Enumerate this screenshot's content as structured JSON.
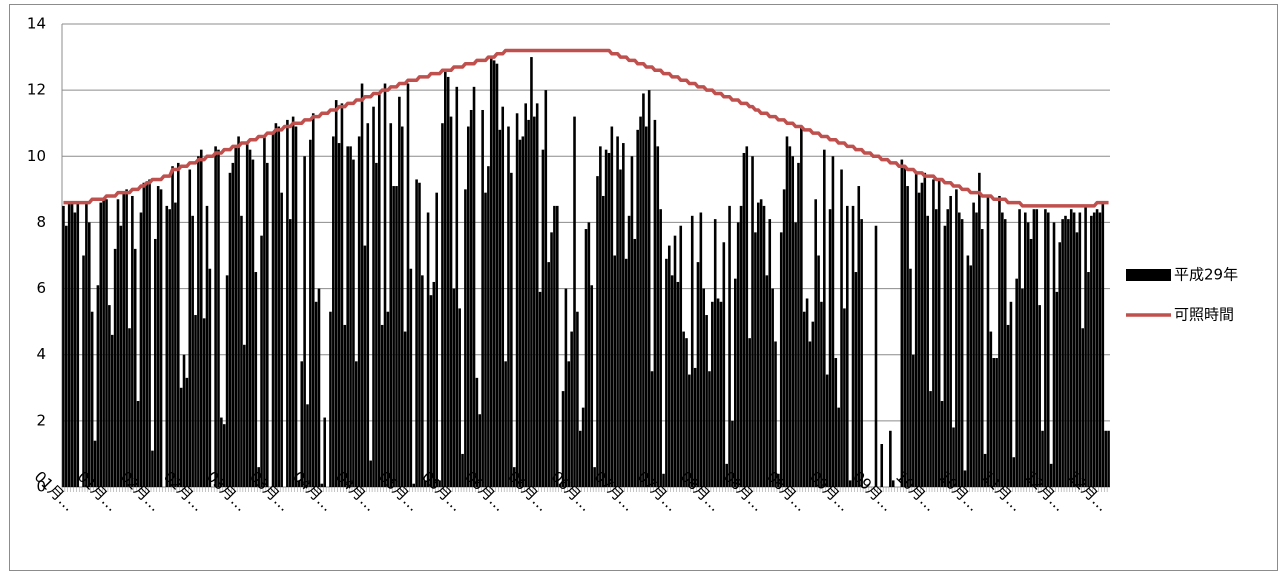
{
  "chart_data": {
    "type": "bar",
    "categories": [
      "01月…",
      null,
      null,
      null,
      null,
      null,
      null,
      null,
      null,
      null,
      null,
      null,
      null,
      null,
      null,
      "01月…",
      null,
      null,
      null,
      null,
      null,
      null,
      null,
      null,
      null,
      null,
      null,
      null,
      null,
      null,
      "02月…",
      null,
      null,
      null,
      null,
      null,
      null,
      null,
      null,
      null,
      null,
      null,
      null,
      null,
      null,
      "02月…",
      null,
      null,
      null,
      null,
      null,
      null,
      null,
      null,
      null,
      null,
      null,
      null,
      null,
      null,
      "03月…",
      null,
      null,
      null,
      null,
      null,
      null,
      null,
      null,
      null,
      null,
      null,
      null,
      null,
      null,
      "03月…",
      null,
      null,
      null,
      null,
      null,
      null,
      null,
      null,
      null,
      null,
      null,
      null,
      null,
      null,
      "04月…",
      null,
      null,
      null,
      null,
      null,
      null,
      null,
      null,
      null,
      null,
      null,
      null,
      null,
      null,
      "04月…",
      null,
      null,
      null,
      null,
      null,
      null,
      null,
      null,
      null,
      null,
      null,
      null,
      null,
      null,
      "05月…",
      null,
      null,
      null,
      null,
      null,
      null,
      null,
      null,
      null,
      null,
      null,
      null,
      null,
      null,
      "05月…",
      null,
      null,
      null,
      null,
      null,
      null,
      null,
      null,
      null,
      null,
      null,
      null,
      null,
      null,
      "06月…",
      null,
      null,
      null,
      null,
      null,
      null,
      null,
      null,
      null,
      null,
      null,
      null,
      null,
      null,
      "06月…",
      null,
      null,
      null,
      null,
      null,
      null,
      null,
      null,
      null,
      null,
      null,
      null,
      null,
      null,
      "06月…",
      null,
      null,
      null,
      null,
      null,
      null,
      null,
      null,
      null,
      null,
      null,
      null,
      null,
      null,
      "07月…",
      null,
      null,
      null,
      null,
      null,
      null,
      null,
      null,
      null,
      null,
      null,
      null,
      null,
      null,
      "07月…",
      null,
      null,
      null,
      null,
      null,
      null,
      null,
      null,
      null,
      null,
      null,
      null,
      null,
      null,
      "08月…",
      null,
      null,
      null,
      null,
      null,
      null,
      null,
      null,
      null,
      null,
      null,
      null,
      null,
      null,
      "08月…",
      null,
      null,
      null,
      null,
      null,
      null,
      null,
      null,
      null,
      null,
      null,
      null,
      null,
      null,
      "08月…",
      null,
      null,
      null,
      null,
      null,
      null,
      null,
      null,
      null,
      null,
      null,
      null,
      null,
      null,
      "09月…",
      null,
      null,
      null,
      null,
      null,
      null,
      null,
      null,
      null,
      null,
      null,
      null,
      null,
      null,
      "09月…",
      null,
      null,
      null,
      null,
      null,
      null,
      null,
      null,
      null,
      null,
      null,
      null,
      null,
      null,
      "10月…",
      null,
      null,
      null,
      null,
      null,
      null,
      null,
      null,
      null,
      null,
      null,
      null,
      null,
      null,
      "10月…",
      null,
      null,
      null,
      null,
      null,
      null,
      null,
      null,
      null,
      null,
      null,
      null,
      null,
      null,
      "11月…",
      null,
      null,
      null,
      null,
      null,
      null,
      null,
      null,
      null,
      null,
      null,
      null,
      null,
      null,
      "12月…",
      null,
      null,
      null,
      null,
      null,
      null,
      null,
      null,
      null,
      null,
      null,
      null,
      null,
      null,
      "12月…",
      null,
      null,
      null,
      null
    ],
    "series": [
      {
        "name": "平成29年",
        "type": "bar",
        "color": "#000000",
        "values": [
          8.5,
          7.9,
          8.6,
          8.6,
          8.3,
          8.6,
          0,
          7.0,
          8.6,
          8.0,
          5.3,
          1.4,
          6.1,
          8.6,
          8.7,
          8.7,
          5.5,
          4.6,
          7.2,
          8.7,
          7.9,
          8.9,
          9.0,
          4.8,
          8.8,
          7.2,
          2.6,
          8.3,
          9.2,
          9.2,
          9.3,
          1.1,
          7.5,
          9.1,
          9.0,
          0,
          8.5,
          8.4,
          9.7,
          8.6,
          9.8,
          3.0,
          4.0,
          3.3,
          9.6,
          8.2,
          5.2,
          10.0,
          10.2,
          5.1,
          8.5,
          6.6,
          0,
          10.3,
          10.2,
          2.1,
          1.9,
          6.4,
          9.5,
          9.8,
          10.3,
          10.6,
          8.2,
          4.3,
          10.4,
          10.2,
          9.9,
          6.5,
          0.6,
          7.6,
          10.6,
          9.8,
          0,
          10.7,
          11.0,
          10.9,
          8.9,
          0,
          11.1,
          8.1,
          11.2,
          10.9,
          0.2,
          3.8,
          10.0,
          2.5,
          10.5,
          11.3,
          5.6,
          6.0,
          0.1,
          2.1,
          0,
          5.3,
          10.6,
          11.7,
          10.4,
          11.6,
          4.9,
          10.3,
          10.3,
          9.9,
          3.8,
          10.6,
          12.2,
          7.3,
          11.0,
          0.8,
          11.5,
          9.8,
          11.9,
          4.9,
          12.2,
          5.3,
          11.0,
          9.1,
          9.1,
          11.8,
          10.9,
          4.7,
          12.2,
          6.6,
          0.1,
          9.3,
          9.2,
          6.4,
          0.2,
          8.3,
          5.8,
          6.2,
          8.9,
          0.2,
          11.0,
          12.6,
          12.4,
          11.2,
          6.0,
          12.1,
          5.4,
          1.0,
          9.0,
          10.9,
          11.4,
          12.1,
          3.3,
          2.2,
          11.4,
          8.9,
          9.7,
          13.0,
          12.9,
          12.8,
          10.8,
          11.5,
          3.8,
          10.9,
          9.5,
          0.6,
          11.3,
          10.5,
          10.6,
          11.6,
          11.1,
          13.0,
          11.2,
          11.6,
          5.9,
          10.2,
          12.0,
          6.8,
          7.7,
          8.5,
          8.5,
          0.1,
          2.9,
          6.0,
          3.8,
          4.7,
          11.2,
          5.3,
          1.7,
          2.4,
          7.8,
          8.0,
          6.1,
          0.6,
          9.4,
          10.3,
          8.8,
          10.2,
          10.1,
          10.9,
          7.0,
          10.6,
          9.6,
          10.4,
          6.9,
          8.2,
          10.0,
          7.5,
          10.8,
          11.2,
          11.9,
          10.9,
          12.0,
          3.5,
          11.1,
          10.3,
          8.4,
          0.4,
          6.9,
          7.3,
          6.4,
          7.6,
          6.2,
          7.9,
          4.7,
          4.5,
          3.4,
          8.2,
          3.6,
          6.8,
          8.3,
          6.0,
          5.2,
          3.5,
          5.6,
          8.1,
          5.7,
          5.6,
          7.4,
          0.7,
          8.5,
          2.0,
          6.3,
          8.0,
          8.5,
          10.1,
          10.3,
          4.5,
          10.0,
          7.7,
          8.6,
          8.7,
          8.5,
          6.4,
          8.1,
          6.0,
          4.4,
          0.4,
          7.7,
          9.0,
          10.6,
          10.3,
          10.0,
          8.0,
          9.8,
          10.9,
          5.3,
          5.7,
          4.4,
          5.0,
          8.7,
          7.0,
          5.6,
          10.2,
          3.4,
          8.4,
          10.0,
          3.9,
          2.4,
          9.6,
          5.4,
          8.5,
          0.2,
          8.5,
          6.5,
          9.1,
          8.1,
          0,
          0,
          0,
          0,
          7.9,
          0,
          1.3,
          0,
          0,
          1.7,
          0.2,
          0,
          0,
          9.9,
          9.7,
          9.1,
          6.6,
          4.0,
          9.5,
          8.9,
          9.2,
          9.5,
          8.2,
          2.9,
          9.3,
          8.4,
          9.3,
          2.6,
          7.9,
          8.4,
          8.8,
          1.8,
          9.0,
          8.3,
          8.1,
          0.5,
          7.0,
          6.7,
          8.6,
          8.3,
          9.5,
          7.8,
          1.0,
          8.8,
          4.7,
          3.9,
          3.9,
          8.8,
          8.3,
          8.1,
          4.9,
          5.6,
          0.9,
          6.3,
          8.4,
          6.0,
          8.3,
          8.0,
          7.5,
          8.4,
          8.4,
          5.5,
          1.7,
          8.4,
          8.3,
          0.7,
          8.0,
          5.9,
          7.4,
          8.1,
          8.2,
          8.1,
          8.4,
          8.3,
          7.7,
          8.3,
          4.8,
          8.5,
          6.5,
          8.2,
          8.3,
          8.4,
          8.3,
          8.6,
          1.7,
          1.7
        ]
      },
      {
        "name": "可照時間",
        "type": "line",
        "color": "#c0504d",
        "values": [
          8.6,
          8.6,
          8.6,
          8.6,
          8.6,
          8.6,
          8.6,
          8.6,
          8.6,
          8.6,
          8.7,
          8.7,
          8.7,
          8.7,
          8.7,
          8.8,
          8.8,
          8.8,
          8.8,
          8.9,
          8.9,
          8.9,
          8.9,
          8.9,
          9.0,
          9.0,
          9.0,
          9.1,
          9.1,
          9.2,
          9.2,
          9.3,
          9.3,
          9.3,
          9.3,
          9.4,
          9.4,
          9.4,
          9.6,
          9.6,
          9.6,
          9.7,
          9.7,
          9.7,
          9.8,
          9.8,
          9.8,
          9.9,
          9.9,
          9.9,
          10.0,
          10.0,
          10.0,
          10.1,
          10.1,
          10.1,
          10.2,
          10.2,
          10.2,
          10.3,
          10.3,
          10.3,
          10.4,
          10.4,
          10.4,
          10.5,
          10.5,
          10.5,
          10.6,
          10.6,
          10.6,
          10.7,
          10.7,
          10.7,
          10.8,
          10.8,
          10.8,
          10.9,
          10.9,
          10.9,
          11.0,
          11.0,
          11.0,
          11.0,
          11.1,
          11.1,
          11.1,
          11.2,
          11.2,
          11.2,
          11.3,
          11.3,
          11.3,
          11.4,
          11.4,
          11.4,
          11.5,
          11.5,
          11.5,
          11.6,
          11.6,
          11.6,
          11.7,
          11.7,
          11.7,
          11.8,
          11.8,
          11.8,
          11.9,
          11.9,
          11.9,
          12.0,
          12.0,
          12.0,
          12.1,
          12.1,
          12.1,
          12.2,
          12.2,
          12.2,
          12.3,
          12.3,
          12.3,
          12.3,
          12.4,
          12.4,
          12.4,
          12.4,
          12.5,
          12.5,
          12.5,
          12.5,
          12.6,
          12.6,
          12.6,
          12.6,
          12.7,
          12.7,
          12.7,
          12.7,
          12.8,
          12.8,
          12.8,
          12.8,
          12.9,
          12.9,
          12.9,
          12.9,
          13.0,
          13.0,
          13.0,
          13.1,
          13.1,
          13.1,
          13.2,
          13.2,
          13.2,
          13.2,
          13.2,
          13.2,
          13.2,
          13.2,
          13.2,
          13.2,
          13.2,
          13.2,
          13.2,
          13.2,
          13.2,
          13.2,
          13.2,
          13.2,
          13.2,
          13.2,
          13.2,
          13.2,
          13.2,
          13.2,
          13.2,
          13.2,
          13.2,
          13.2,
          13.2,
          13.2,
          13.2,
          13.2,
          13.2,
          13.2,
          13.2,
          13.2,
          13.2,
          13.1,
          13.1,
          13.1,
          13.0,
          13.0,
          13.0,
          12.9,
          12.9,
          12.9,
          12.8,
          12.8,
          12.8,
          12.7,
          12.7,
          12.7,
          12.6,
          12.6,
          12.6,
          12.5,
          12.5,
          12.5,
          12.4,
          12.4,
          12.4,
          12.3,
          12.3,
          12.3,
          12.2,
          12.2,
          12.2,
          12.1,
          12.1,
          12.1,
          12.0,
          12.0,
          12.0,
          11.9,
          11.9,
          11.9,
          11.8,
          11.8,
          11.8,
          11.7,
          11.7,
          11.7,
          11.6,
          11.6,
          11.6,
          11.5,
          11.5,
          11.4,
          11.4,
          11.3,
          11.3,
          11.3,
          11.2,
          11.2,
          11.2,
          11.1,
          11.1,
          11.1,
          11.0,
          11.0,
          11.0,
          10.9,
          10.9,
          10.9,
          10.8,
          10.8,
          10.8,
          10.7,
          10.7,
          10.7,
          10.6,
          10.6,
          10.6,
          10.5,
          10.5,
          10.5,
          10.4,
          10.4,
          10.4,
          10.3,
          10.3,
          10.3,
          10.2,
          10.2,
          10.2,
          10.1,
          10.1,
          10.1,
          10.0,
          10.0,
          10.0,
          9.9,
          9.9,
          9.9,
          9.8,
          9.8,
          9.8,
          9.7,
          9.7,
          9.7,
          9.6,
          9.6,
          9.6,
          9.5,
          9.5,
          9.5,
          9.4,
          9.4,
          9.4,
          9.4,
          9.3,
          9.3,
          9.3,
          9.2,
          9.2,
          9.2,
          9.1,
          9.1,
          9.1,
          9.0,
          9.0,
          9.0,
          8.9,
          8.9,
          8.9,
          8.9,
          8.8,
          8.8,
          8.8,
          8.8,
          8.7,
          8.7,
          8.7,
          8.7,
          8.7,
          8.6,
          8.6,
          8.6,
          8.6,
          8.6,
          8.5,
          8.5,
          8.5,
          8.5,
          8.5,
          8.5,
          8.5,
          8.5,
          8.5,
          8.5,
          8.5,
          8.5,
          8.5,
          8.5,
          8.5,
          8.5,
          8.5,
          8.5,
          8.5,
          8.5,
          8.5,
          8.5,
          8.5,
          8.5,
          8.5,
          8.5,
          8.6,
          8.6,
          8.6,
          8.6,
          8.6
        ]
      }
    ],
    "ylim": [
      0,
      14
    ],
    "yticks": [
      0,
      2,
      4,
      6,
      8,
      10,
      12,
      14
    ],
    "grid": true,
    "legend": "right"
  }
}
